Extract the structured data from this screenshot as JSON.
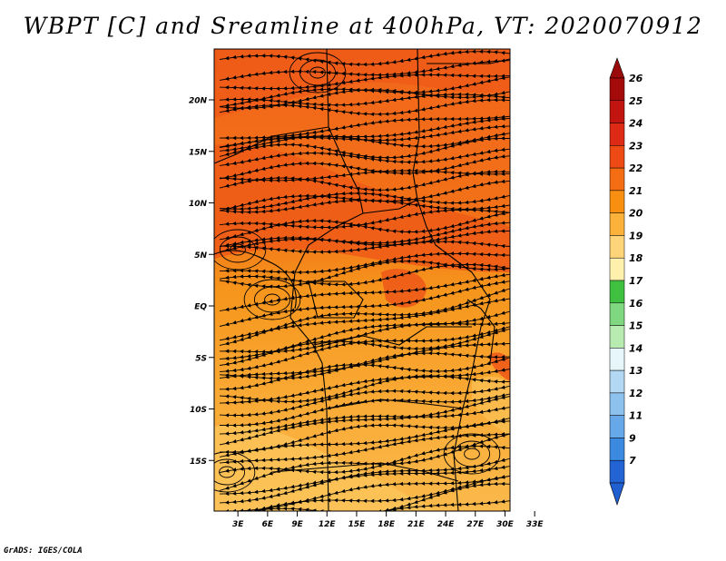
{
  "title": "WBPT [C] and Sreamline at 400hPa, VT: 2020070912",
  "credit": "GrADS: IGES/COLA",
  "map": {
    "lat_ticks": [
      {
        "label": "20N",
        "value": 20
      },
      {
        "label": "15N",
        "value": 15
      },
      {
        "label": "10N",
        "value": 10
      },
      {
        "label": "5N",
        "value": 5
      },
      {
        "label": "EQ",
        "value": 0
      },
      {
        "label": "5S",
        "value": -5
      },
      {
        "label": "10S",
        "value": -10
      },
      {
        "label": "15S",
        "value": -15
      }
    ],
    "lon_ticks": [
      {
        "label": "3E",
        "value": 3
      },
      {
        "label": "6E",
        "value": 6
      },
      {
        "label": "9E",
        "value": 9
      },
      {
        "label": "12E",
        "value": 12
      },
      {
        "label": "15E",
        "value": 15
      },
      {
        "label": "18E",
        "value": 18
      },
      {
        "label": "21E",
        "value": 21
      },
      {
        "label": "24E",
        "value": 24
      },
      {
        "label": "27E",
        "value": 27
      },
      {
        "label": "30E",
        "value": 30
      },
      {
        "label": "33E",
        "value": 33
      }
    ]
  },
  "colorbar": {
    "levels": [
      {
        "label": "26",
        "color": "#a50a0a"
      },
      {
        "label": "25",
        "color": "#c21510"
      },
      {
        "label": "24",
        "color": "#dc2a14"
      },
      {
        "label": "23",
        "color": "#ee4a16"
      },
      {
        "label": "22",
        "color": "#f46d12"
      },
      {
        "label": "21",
        "color": "#f88f10"
      },
      {
        "label": "20",
        "color": "#fbb13a"
      },
      {
        "label": "19",
        "color": "#fdd47a"
      },
      {
        "label": "18",
        "color": "#fff1ad"
      },
      {
        "label": "17",
        "color": "#40c040"
      },
      {
        "label": "16",
        "color": "#7fd77f"
      },
      {
        "label": "15",
        "color": "#b8ebb0"
      },
      {
        "label": "14",
        "color": "#e6f6fa"
      },
      {
        "label": "13",
        "color": "#b2d8f4"
      },
      {
        "label": "12",
        "color": "#8ec2ee"
      },
      {
        "label": "11",
        "color": "#66a8e8"
      },
      {
        "label": "9",
        "color": "#3c8ae0"
      },
      {
        "label": "7",
        "color": "#2364d4"
      }
    ],
    "top_arrow_color": "#9a0a0a",
    "bottom_arrow_color": "#1f5fd0"
  }
}
